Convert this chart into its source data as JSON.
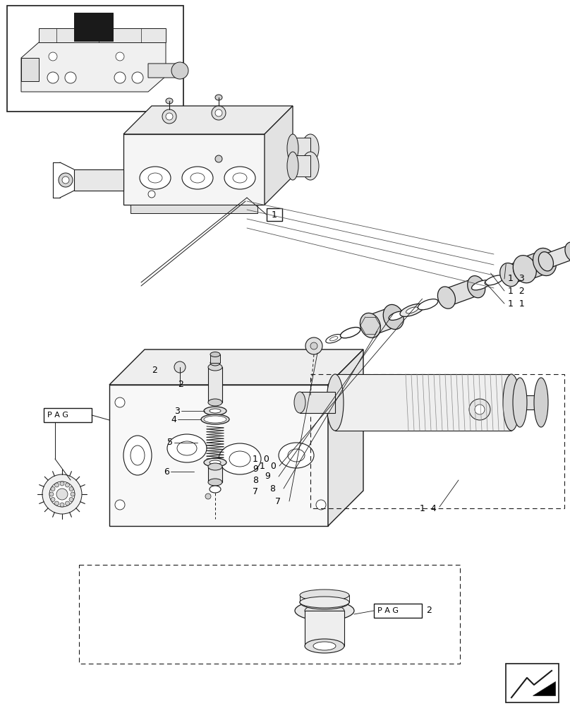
{
  "bg_color": "#ffffff",
  "lc": "#1a1a1a",
  "fig_width": 8.08,
  "fig_height": 10.0,
  "dpi": 100
}
